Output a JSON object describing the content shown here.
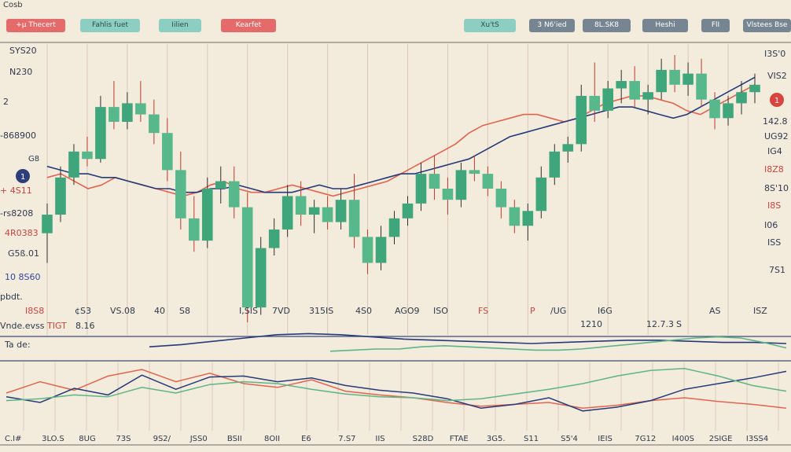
{
  "window": {
    "title": "Cosb"
  },
  "toolbar": {
    "left_buttons": [
      "+µ Thecert",
      "Fahlis fuet",
      "Iilien",
      "Kearfet"
    ],
    "right_buttons": [
      "Xu'tS",
      "3 N6'ied",
      "8L.SK8",
      "Heshi",
      "FlI",
      "Vlstees Bse"
    ]
  },
  "colors": {
    "background": "#f3ebdc",
    "candle_green": "#3fa57a",
    "candle_light": "#9fd7bf",
    "line_red": "#e0654f",
    "line_navy": "#243a7a",
    "line_green": "#5db585",
    "grid": "#d9c9b8"
  },
  "main_chart": {
    "left_axis": [
      "SYS20",
      "N230",
      "2",
      "-868900",
      "G8",
      "+ 4S11",
      "-rs8208",
      "4R0383",
      "G5ß.01",
      "10 8S60",
      "pbdt."
    ],
    "right_axis": [
      "I3S'0",
      "VIS2",
      "142.8",
      "UG92",
      "IG4",
      "I8Z8",
      "8S'10",
      "I8S",
      "I06",
      "ISS",
      "7S1"
    ],
    "bottom_labels": [
      "I8S8",
      "¢S3",
      "VS.08",
      "40",
      "S8",
      "I,SIS",
      "7VD",
      "315IS",
      "4S0",
      "AGO9",
      "ISO",
      "FS",
      "P",
      "/UG",
      "I6G",
      "AS",
      "ISZ"
    ],
    "bottom_labels_2": [
      "Vnde.evss",
      "TIGT",
      "8.16",
      "1210",
      "12.7.3",
      "S"
    ],
    "markers": [
      {
        "label": "1",
        "color": "#2c3f7a"
      },
      {
        "label": "1",
        "color": "#d9443f"
      }
    ]
  },
  "osc_label": "Ta de:",
  "bottom_axis": [
    "C.I#",
    "3LO.S",
    "8UG",
    "73S",
    "9S2/",
    "JSS0",
    "BSII",
    "8OII",
    "E6",
    "7.S7",
    "IIS",
    "S28D",
    "FTAE",
    "3G5.",
    "S11",
    "S5'4",
    "IEIS",
    "7G12",
    "I400S",
    "2SIGE",
    "I3SS4"
  ],
  "chart_data": [
    {
      "type": "candlestick",
      "title": "",
      "candles": [
        {
          "o": 3.8,
          "h": 4.6,
          "l": 3.0,
          "c": 4.3
        },
        {
          "o": 4.3,
          "h": 5.6,
          "l": 4.1,
          "c": 5.3
        },
        {
          "o": 5.3,
          "h": 6.2,
          "l": 5.1,
          "c": 6.0
        },
        {
          "o": 6.0,
          "h": 6.4,
          "l": 5.6,
          "c": 5.8
        },
        {
          "o": 5.8,
          "h": 7.5,
          "l": 5.7,
          "c": 7.2
        },
        {
          "o": 7.2,
          "h": 7.9,
          "l": 6.6,
          "c": 6.8
        },
        {
          "o": 6.8,
          "h": 7.6,
          "l": 6.6,
          "c": 7.3
        },
        {
          "o": 7.3,
          "h": 7.9,
          "l": 6.8,
          "c": 7.0
        },
        {
          "o": 7.0,
          "h": 7.4,
          "l": 6.2,
          "c": 6.5
        },
        {
          "o": 6.5,
          "h": 6.9,
          "l": 5.2,
          "c": 5.5
        },
        {
          "o": 5.5,
          "h": 6.0,
          "l": 3.9,
          "c": 4.2
        },
        {
          "o": 4.2,
          "h": 4.8,
          "l": 3.3,
          "c": 3.6
        },
        {
          "o": 3.6,
          "h": 5.3,
          "l": 3.4,
          "c": 5.0
        },
        {
          "o": 5.0,
          "h": 5.6,
          "l": 4.6,
          "c": 5.2
        },
        {
          "o": 5.2,
          "h": 5.6,
          "l": 4.2,
          "c": 4.5
        },
        {
          "o": 4.5,
          "h": 4.9,
          "l": 1.4,
          "c": 1.8
        },
        {
          "o": 1.8,
          "h": 3.7,
          "l": 1.6,
          "c": 3.4
        },
        {
          "o": 3.4,
          "h": 4.2,
          "l": 3.2,
          "c": 3.9
        },
        {
          "o": 3.9,
          "h": 5.1,
          "l": 3.7,
          "c": 4.8
        },
        {
          "o": 4.8,
          "h": 5.2,
          "l": 4.0,
          "c": 4.3
        },
        {
          "o": 4.3,
          "h": 4.7,
          "l": 3.8,
          "c": 4.5
        },
        {
          "o": 4.5,
          "h": 4.8,
          "l": 3.9,
          "c": 4.1
        },
        {
          "o": 4.1,
          "h": 5.0,
          "l": 3.9,
          "c": 4.7
        },
        {
          "o": 4.7,
          "h": 5.4,
          "l": 3.4,
          "c": 3.7
        },
        {
          "o": 3.7,
          "h": 3.9,
          "l": 2.7,
          "c": 3.0
        },
        {
          "o": 3.0,
          "h": 4.0,
          "l": 2.8,
          "c": 3.7
        },
        {
          "o": 3.7,
          "h": 4.4,
          "l": 3.5,
          "c": 4.2
        },
        {
          "o": 4.2,
          "h": 4.8,
          "l": 4.0,
          "c": 4.6
        },
        {
          "o": 4.6,
          "h": 5.7,
          "l": 4.4,
          "c": 5.4
        },
        {
          "o": 5.4,
          "h": 5.9,
          "l": 4.7,
          "c": 5.0
        },
        {
          "o": 5.0,
          "h": 5.3,
          "l": 4.3,
          "c": 4.7
        },
        {
          "o": 4.7,
          "h": 5.7,
          "l": 4.5,
          "c": 5.5
        },
        {
          "o": 5.5,
          "h": 5.9,
          "l": 5.2,
          "c": 5.4
        },
        {
          "o": 5.4,
          "h": 5.6,
          "l": 4.8,
          "c": 5.0
        },
        {
          "o": 5.0,
          "h": 5.2,
          "l": 4.2,
          "c": 4.5
        },
        {
          "o": 4.5,
          "h": 4.7,
          "l": 3.8,
          "c": 4.0
        },
        {
          "o": 4.0,
          "h": 4.6,
          "l": 3.6,
          "c": 4.4
        },
        {
          "o": 4.4,
          "h": 5.6,
          "l": 4.2,
          "c": 5.3
        },
        {
          "o": 5.3,
          "h": 6.2,
          "l": 5.1,
          "c": 6.0
        },
        {
          "o": 6.0,
          "h": 6.4,
          "l": 5.7,
          "c": 6.2
        },
        {
          "o": 6.2,
          "h": 7.8,
          "l": 6.0,
          "c": 7.5
        },
        {
          "o": 7.5,
          "h": 8.4,
          "l": 6.8,
          "c": 7.1
        },
        {
          "o": 7.1,
          "h": 7.9,
          "l": 6.9,
          "c": 7.7
        },
        {
          "o": 7.7,
          "h": 8.2,
          "l": 7.3,
          "c": 7.9
        },
        {
          "o": 7.9,
          "h": 8.3,
          "l": 7.2,
          "c": 7.4
        },
        {
          "o": 7.4,
          "h": 7.8,
          "l": 7.0,
          "c": 7.6
        },
        {
          "o": 7.6,
          "h": 8.5,
          "l": 7.4,
          "c": 8.2
        },
        {
          "o": 8.2,
          "h": 8.6,
          "l": 7.6,
          "c": 7.8
        },
        {
          "o": 7.8,
          "h": 8.4,
          "l": 7.5,
          "c": 8.1
        },
        {
          "o": 8.1,
          "h": 8.5,
          "l": 7.2,
          "c": 7.4
        },
        {
          "o": 7.4,
          "h": 7.6,
          "l": 6.6,
          "c": 6.9
        },
        {
          "o": 6.9,
          "h": 7.5,
          "l": 6.7,
          "c": 7.3
        },
        {
          "o": 7.3,
          "h": 7.9,
          "l": 7.0,
          "c": 7.6
        },
        {
          "o": 7.6,
          "h": 8.1,
          "l": 7.3,
          "c": 7.8
        }
      ],
      "series": [
        {
          "color_key": "line_red",
          "values": [
            5.3,
            5.4,
            5.2,
            5.0,
            5.1,
            5.3,
            5.2,
            5.1,
            5.0,
            4.9,
            4.8,
            4.9,
            5.1,
            5.2,
            5.0,
            4.9,
            4.9,
            5.0,
            5.1,
            5.0,
            4.9,
            4.8,
            4.9,
            5.0,
            5.1,
            5.2,
            5.4,
            5.6,
            5.8,
            6.0,
            6.2,
            6.5,
            6.7,
            6.8,
            6.9,
            7.0,
            7.0,
            6.9,
            6.8,
            6.9,
            7.1,
            7.3,
            7.4,
            7.5,
            7.5,
            7.4,
            7.3,
            7.1,
            7.0,
            7.2,
            7.4,
            7.6,
            7.8
          ]
        },
        {
          "color_key": "line_navy",
          "values": [
            5.6,
            5.5,
            5.4,
            5.4,
            5.3,
            5.3,
            5.2,
            5.1,
            5.0,
            5.0,
            4.9,
            4.9,
            5.0,
            5.0,
            5.1,
            5.0,
            4.9,
            4.9,
            4.9,
            5.0,
            5.1,
            5.0,
            5.0,
            5.1,
            5.2,
            5.3,
            5.4,
            5.4,
            5.5,
            5.6,
            5.7,
            5.8,
            6.0,
            6.2,
            6.4,
            6.5,
            6.6,
            6.7,
            6.8,
            6.9,
            7.0,
            7.1,
            7.2,
            7.2,
            7.1,
            7.0,
            6.9,
            7.0,
            7.2,
            7.4,
            7.6,
            7.8,
            8.0
          ]
        }
      ]
    },
    {
      "type": "line",
      "title": "",
      "series": [
        {
          "color_key": "line_navy",
          "values": [
            1.2,
            1.4,
            1.7,
            2.0,
            2.3,
            2.4,
            2.3,
            2.1,
            1.9,
            1.8,
            1.7,
            1.6,
            1.5,
            1.6,
            1.7,
            1.8,
            1.8,
            1.7,
            1.6,
            1.6,
            1.5
          ]
        },
        {
          "color_key": "line_green",
          "values": [
            0.8,
            0.9,
            1.0,
            1.0,
            1.2,
            1.3,
            1.2,
            1.1,
            1.0,
            0.9,
            0.9,
            1.0,
            1.2,
            1.4,
            1.6,
            1.8,
            2.0,
            2.1,
            2.0,
            1.6,
            1.1
          ]
        }
      ]
    },
    {
      "type": "line",
      "title": "",
      "series": [
        {
          "color_key": "line_red",
          "values": [
            4.0,
            5.2,
            4.3,
            5.8,
            6.5,
            5.2,
            6.1,
            5.0,
            4.6,
            5.4,
            4.2,
            3.8,
            3.5,
            3.0,
            2.6,
            2.8,
            3.0,
            2.4,
            2.7,
            3.2,
            3.5,
            3.1,
            2.8,
            2.4
          ]
        },
        {
          "color_key": "line_navy",
          "values": [
            3.6,
            3.0,
            4.5,
            3.8,
            5.9,
            4.4,
            5.7,
            5.8,
            5.2,
            5.6,
            4.8,
            4.3,
            4.0,
            3.4,
            2.4,
            2.8,
            3.5,
            2.1,
            2.5,
            3.2,
            4.4,
            5.0,
            5.6,
            6.3
          ]
        },
        {
          "color_key": "line_green",
          "values": [
            3.2,
            3.4,
            3.8,
            3.6,
            4.6,
            4.0,
            4.9,
            5.2,
            5.0,
            4.4,
            3.9,
            3.6,
            3.5,
            3.2,
            3.4,
            3.9,
            4.4,
            5.0,
            5.8,
            6.4,
            6.6,
            5.8,
            4.8,
            4.2
          ]
        }
      ]
    }
  ]
}
